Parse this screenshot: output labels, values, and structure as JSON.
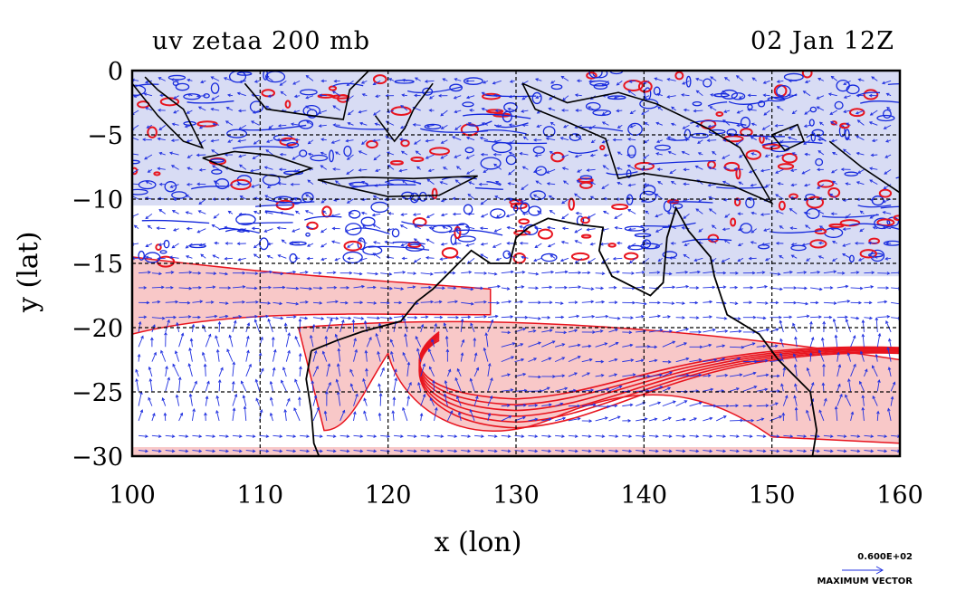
{
  "header": {
    "title_left": "uv zetaa 200 mb",
    "title_right": "02 Jan 12Z"
  },
  "colors": {
    "positive_contour": "#e8141e",
    "negative_contour": "#1428dc",
    "positive_fill": "#f8c8c8",
    "negative_fill": "#d8dcf4",
    "vector": "#2030e0",
    "coast": "#000000"
  },
  "legend": {
    "vector_value": "0.600E+02",
    "vector_label": "MAXIMUM VECTOR"
  },
  "chart_data": {
    "type": "heatmap",
    "title": "uv zetaa 200 mb",
    "timestamp": "02 Jan 12Z",
    "xlabel": "x (lon)",
    "ylabel": "y (lat)",
    "xlim": [
      100,
      160
    ],
    "ylim": [
      -30,
      0
    ],
    "x_ticks": [
      100,
      110,
      120,
      130,
      140,
      150,
      160
    ],
    "y_ticks": [
      0,
      -5,
      -10,
      -15,
      -20,
      -25,
      -30
    ],
    "x_tick_labels": [
      "100",
      "110",
      "120",
      "130",
      "140",
      "150",
      "160"
    ],
    "y_tick_labels": [
      "0",
      "−5",
      "−10",
      "−15",
      "−20",
      "−25",
      "−30"
    ],
    "grid": true,
    "overlays": [
      "contours of absolute vorticity",
      "wind vectors",
      "coastlines"
    ],
    "max_vector": "0.600E+02"
  }
}
